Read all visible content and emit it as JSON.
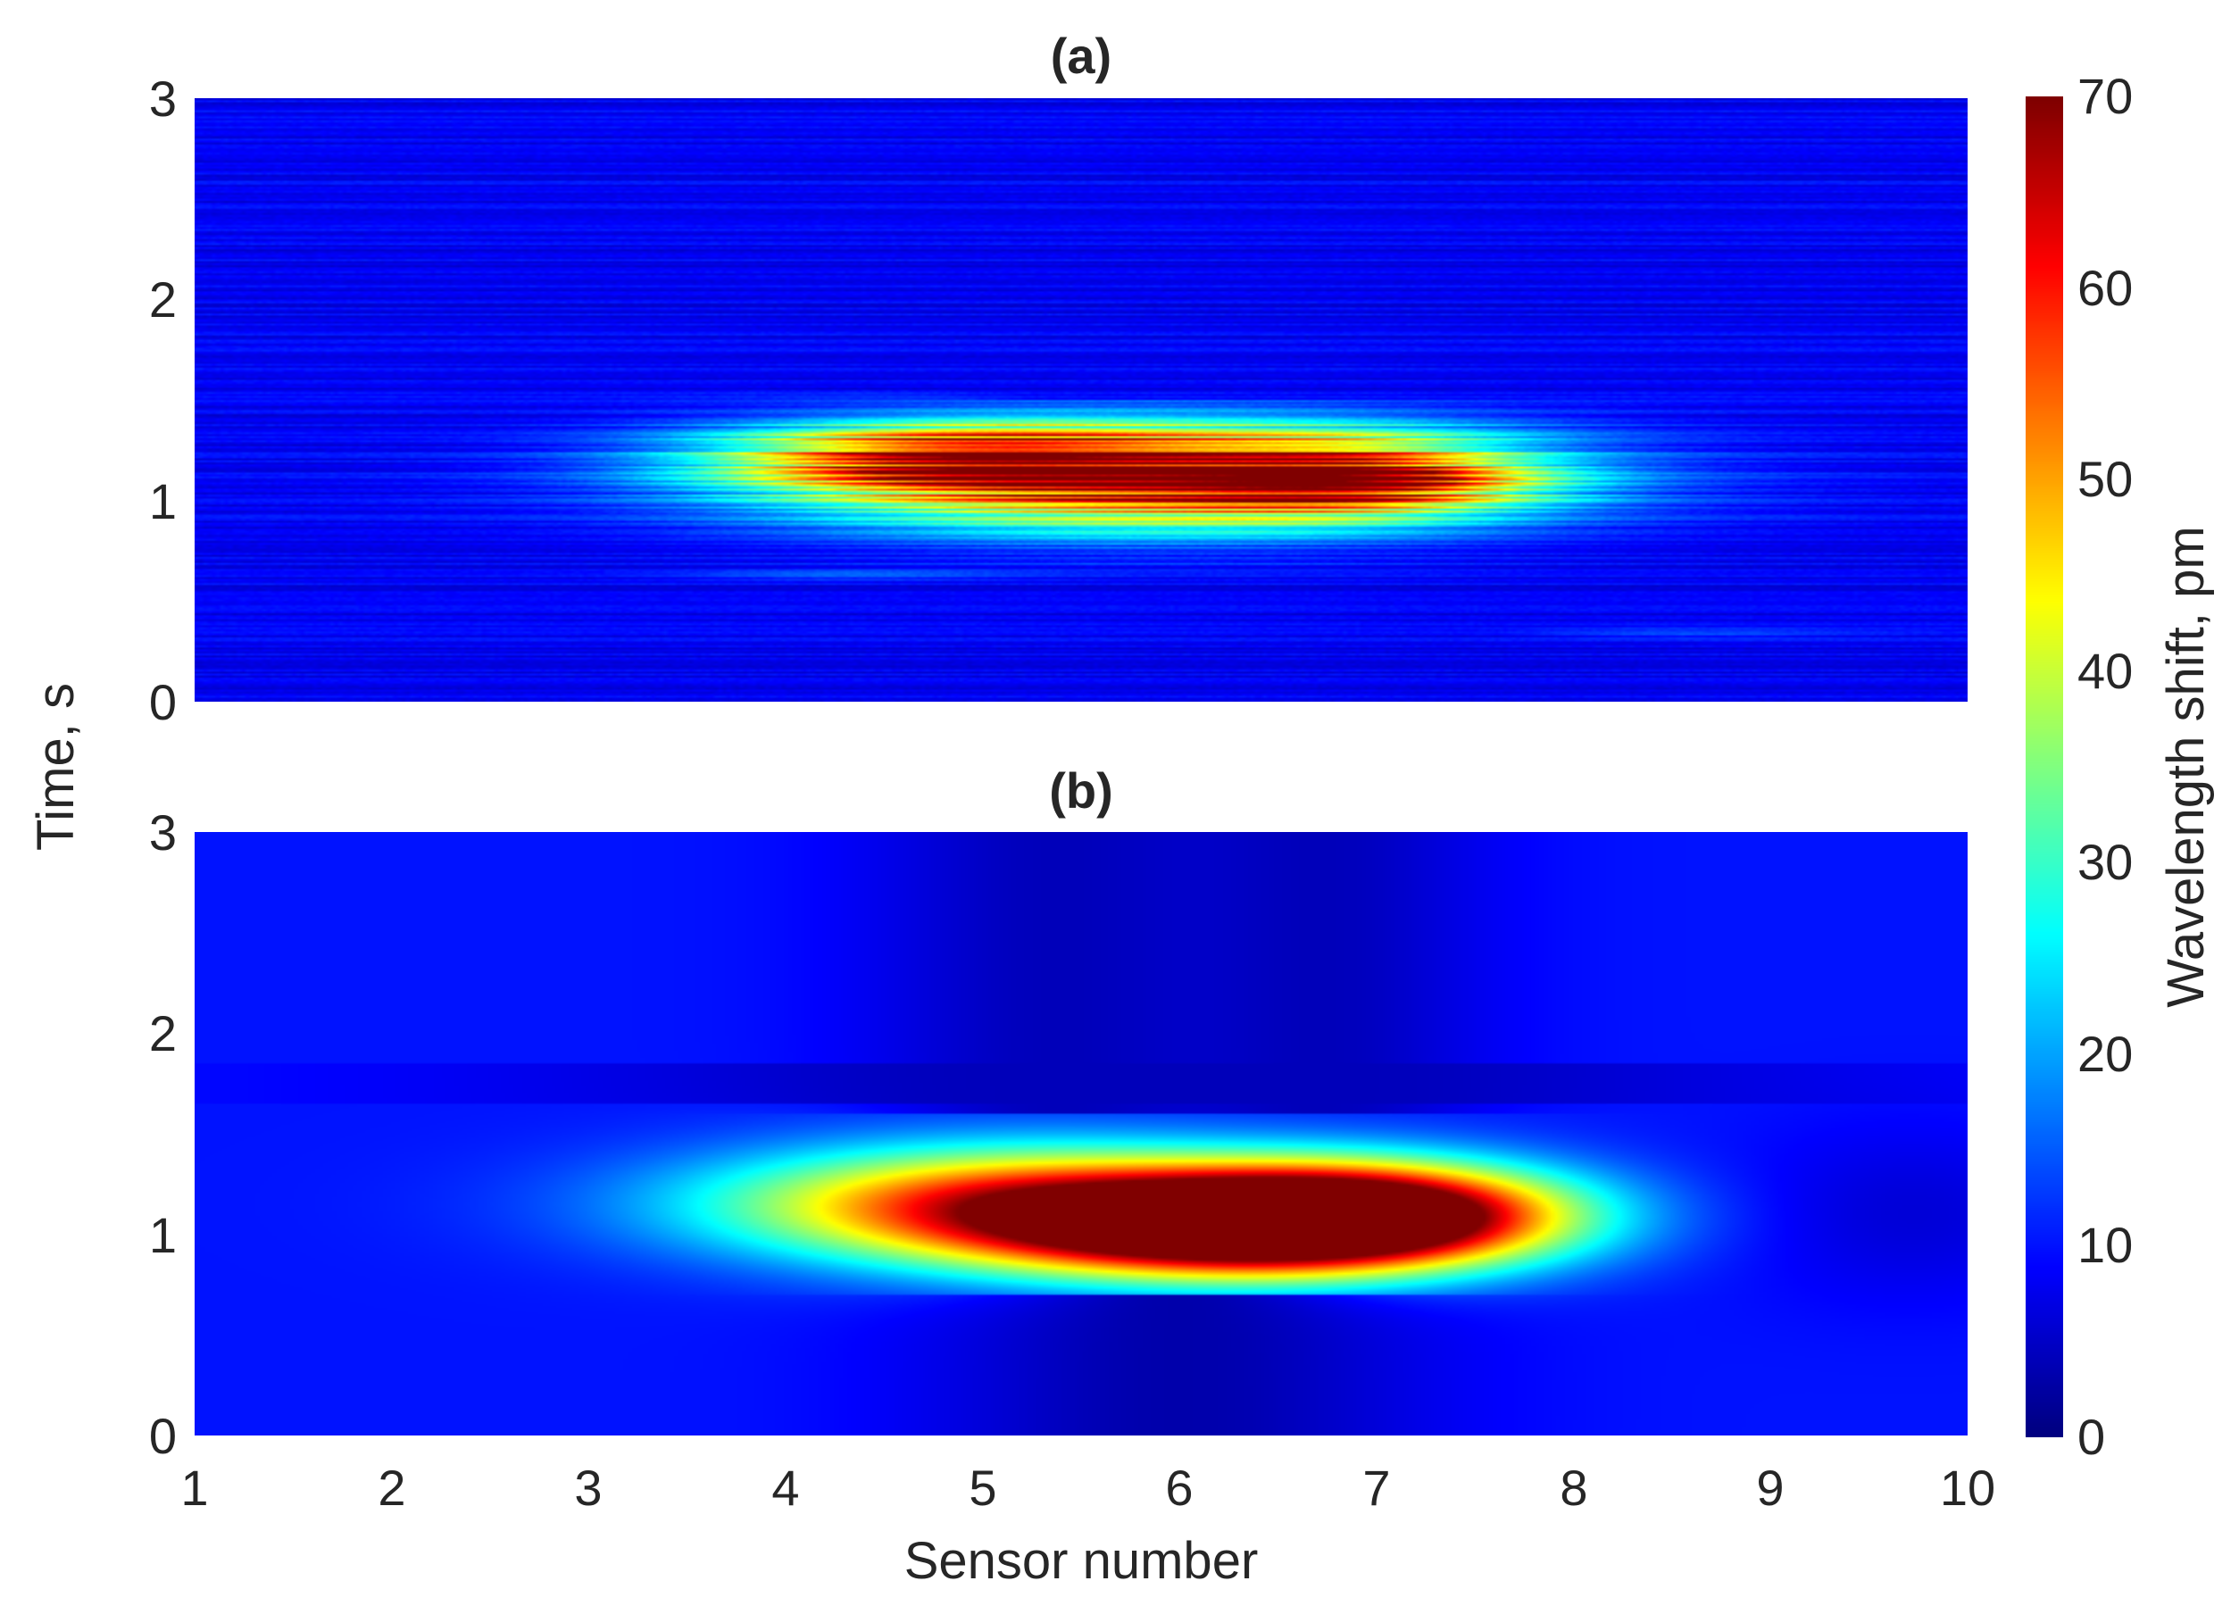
{
  "chart_data": [
    {
      "type": "heatmap",
      "title": "(a)",
      "xlabel": "",
      "ylabel": "",
      "xlim": [
        1,
        10
      ],
      "ylim": [
        0,
        3
      ],
      "x_ticks": [
        "1",
        "2",
        "3",
        "4",
        "5",
        "6",
        "7",
        "8",
        "9",
        "10"
      ],
      "y_ticks": [
        "0",
        "1",
        "2",
        "3"
      ],
      "show_x_tick_labels": false,
      "colormap": "jet",
      "clim": [
        0,
        70
      ],
      "texture": "noisy horizontal striations (raw measurements)",
      "background_level": 8,
      "features": [
        {
          "sensor": 5.8,
          "time": 1.12,
          "peak": 62,
          "sigma_sensor": 1.3,
          "sigma_time": 0.18
        },
        {
          "sensor": 4.8,
          "time": 1.22,
          "peak": 45,
          "sigma_sensor": 0.8,
          "sigma_time": 0.1
        },
        {
          "sensor": 6.9,
          "time": 1.12,
          "peak": 42,
          "sigma_sensor": 0.6,
          "sigma_time": 0.12
        },
        {
          "sensor": 9.8,
          "time": 1.07,
          "peak": 8,
          "sigma_sensor": 0.6,
          "sigma_time": 0.02
        },
        {
          "sensor": 8.6,
          "time": 0.34,
          "peak": 12,
          "sigma_sensor": 0.6,
          "sigma_time": 0.02
        },
        {
          "sensor": 4.3,
          "time": 0.63,
          "peak": 14,
          "sigma_sensor": 0.6,
          "sigma_time": 0.02
        }
      ],
      "low_bands": [
        {
          "sensor": 5.4,
          "width": 0.7,
          "time_from": 1.55,
          "time_to": 3,
          "min_level": 1
        },
        {
          "sensor": 6.3,
          "width": 0.8,
          "time_from": 1.5,
          "time_to": 3,
          "min_level": 1
        },
        {
          "sensor": 5.9,
          "width": 0.8,
          "time_from": 0,
          "time_to": 0.6,
          "min_level": 2
        }
      ]
    },
    {
      "type": "heatmap",
      "title": "(b)",
      "xlabel": "Sensor number",
      "ylabel": "Time, s",
      "xlim": [
        1,
        10
      ],
      "ylim": [
        0,
        3
      ],
      "x_ticks": [
        "1",
        "2",
        "3",
        "4",
        "5",
        "6",
        "7",
        "8",
        "9",
        "10"
      ],
      "y_ticks": [
        "0",
        "1",
        "2",
        "3"
      ],
      "show_x_tick_labels": true,
      "colormap": "jet",
      "clim": [
        0,
        70
      ],
      "texture": "smooth (filtered)",
      "background_level": 10,
      "features": [
        {
          "sensor": 5.2,
          "time": 1.15,
          "peak": 58,
          "sigma_sensor": 1.1,
          "sigma_time": 0.2
        },
        {
          "sensor": 6.3,
          "time": 1.02,
          "peak": 68,
          "sigma_sensor": 0.9,
          "sigma_time": 0.17
        },
        {
          "sensor": 7.0,
          "time": 1.12,
          "peak": 58,
          "sigma_sensor": 0.7,
          "sigma_time": 0.17
        },
        {
          "sensor": 9.7,
          "time": 1.1,
          "peak": 6,
          "sigma_sensor": 0.6,
          "sigma_time": 0.3
        }
      ],
      "low_bands": [
        {
          "sensor": 5.4,
          "width": 0.7,
          "time_from": 1.6,
          "time_to": 3,
          "min_level": 4
        },
        {
          "sensor": 6.7,
          "width": 0.6,
          "time_from": 1.6,
          "time_to": 3,
          "min_level": 4
        },
        {
          "sensor": 6.0,
          "width": 0.9,
          "time_from": 0,
          "time_to": 0.7,
          "min_level": 3
        },
        {
          "sensor": 6.0,
          "width": 2.5,
          "time_from": 1.65,
          "time_to": 1.85,
          "min_level": 4
        }
      ]
    }
  ],
  "colorbar": {
    "label": "Wavelength shift, pm",
    "ticks": [
      "0",
      "10",
      "20",
      "30",
      "40",
      "50",
      "60",
      "70"
    ],
    "range": [
      0,
      70
    ],
    "colormap": "jet"
  }
}
